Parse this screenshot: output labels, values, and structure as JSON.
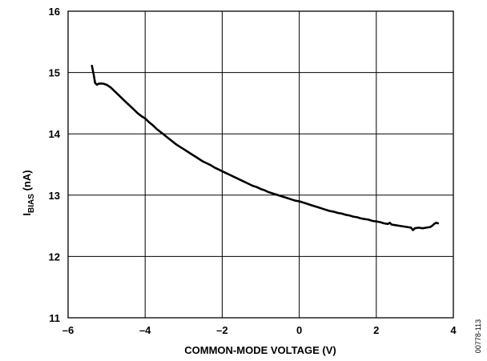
{
  "chart_data": {
    "type": "line",
    "title": "",
    "xlabel": "COMMON-MODE VOLTAGE (V)",
    "ylabel": {
      "prefix": "I",
      "subscript": "BIAS",
      "suffix": " (nA)"
    },
    "xlim": [
      -6,
      4
    ],
    "ylim": [
      11,
      16
    ],
    "xticks": [
      -6,
      -4,
      -2,
      0,
      2,
      4
    ],
    "xtick_labels": [
      "–6",
      "–4",
      "–2",
      "0",
      "2",
      "4"
    ],
    "yticks": [
      11,
      12,
      13,
      14,
      15,
      16
    ],
    "ytick_labels": [
      "11",
      "12",
      "13",
      "14",
      "15",
      "16"
    ],
    "grid": true,
    "figure_id": "00778-113",
    "series": [
      {
        "color": "#000000",
        "x": [
          -5.38,
          -5.33,
          -5.3,
          -5.25,
          -5.2,
          -5.1,
          -5.0,
          -4.9,
          -4.8,
          -4.7,
          -4.6,
          -4.5,
          -4.4,
          -4.3,
          -4.2,
          -4.1,
          -4.0,
          -3.9,
          -3.8,
          -3.7,
          -3.6,
          -3.5,
          -3.4,
          -3.3,
          -3.2,
          -3.1,
          -3.0,
          -2.9,
          -2.8,
          -2.7,
          -2.6,
          -2.5,
          -2.4,
          -2.3,
          -2.2,
          -2.1,
          -2.0,
          -1.9,
          -1.8,
          -1.7,
          -1.6,
          -1.5,
          -1.4,
          -1.3,
          -1.2,
          -1.1,
          -1.0,
          -0.9,
          -0.8,
          -0.7,
          -0.6,
          -0.5,
          -0.4,
          -0.3,
          -0.2,
          -0.1,
          0.0,
          0.1,
          0.2,
          0.3,
          0.4,
          0.5,
          0.6,
          0.7,
          0.8,
          0.9,
          1.0,
          1.1,
          1.2,
          1.3,
          1.4,
          1.5,
          1.6,
          1.7,
          1.8,
          1.9,
          2.0,
          2.1,
          2.2,
          2.3,
          2.35,
          2.4,
          2.5,
          2.6,
          2.7,
          2.8,
          2.9,
          2.95,
          3.0,
          3.1,
          3.2,
          3.3,
          3.4,
          3.45,
          3.5,
          3.55,
          3.6
        ],
        "y": [
          15.11,
          14.95,
          14.83,
          14.8,
          14.82,
          14.82,
          14.8,
          14.76,
          14.7,
          14.64,
          14.58,
          14.52,
          14.46,
          14.4,
          14.34,
          14.29,
          14.25,
          14.19,
          14.14,
          14.08,
          14.03,
          13.98,
          13.93,
          13.88,
          13.83,
          13.79,
          13.75,
          13.71,
          13.67,
          13.63,
          13.59,
          13.55,
          13.52,
          13.49,
          13.45,
          13.42,
          13.39,
          13.36,
          13.33,
          13.3,
          13.27,
          13.24,
          13.21,
          13.18,
          13.15,
          13.13,
          13.1,
          13.08,
          13.05,
          13.03,
          13.01,
          12.99,
          12.97,
          12.95,
          12.93,
          12.91,
          12.9,
          12.88,
          12.86,
          12.84,
          12.82,
          12.8,
          12.78,
          12.76,
          12.74,
          12.73,
          12.71,
          12.7,
          12.68,
          12.67,
          12.65,
          12.64,
          12.62,
          12.61,
          12.6,
          12.58,
          12.57,
          12.56,
          12.54,
          12.53,
          12.55,
          12.52,
          12.51,
          12.5,
          12.49,
          12.48,
          12.47,
          12.43,
          12.46,
          12.47,
          12.46,
          12.47,
          12.48,
          12.5,
          12.53,
          12.55,
          12.54
        ]
      }
    ]
  }
}
